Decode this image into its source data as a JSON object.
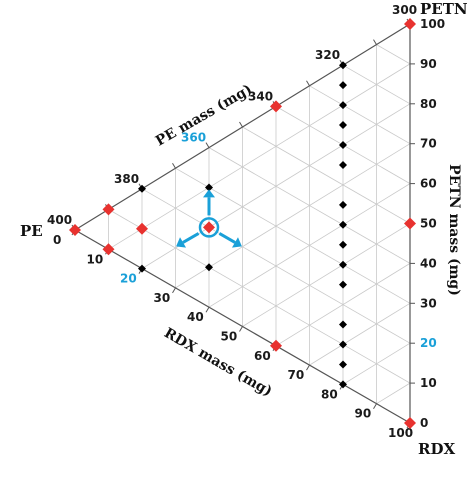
{
  "chart_data": {
    "type": "scatter",
    "subtype": "ternary",
    "corners": {
      "top": "PETN",
      "left": "PE",
      "right": "RDX"
    },
    "axes": {
      "pe": {
        "title": "PE mass (mg)",
        "ticks": [
          320,
          340,
          360,
          380,
          400
        ],
        "highlight_tick": 360,
        "range": [
          300,
          400
        ]
      },
      "petn": {
        "title": "PETN mass (mg)",
        "ticks": [
          0,
          10,
          20,
          30,
          40,
          50,
          60,
          70,
          80,
          90,
          100
        ],
        "highlight_tick": 20,
        "range": [
          0,
          100
        ]
      },
      "rdx": {
        "title": "RDX mass (mg)",
        "ticks": [
          0,
          10,
          20,
          30,
          40,
          50,
          60,
          70,
          80,
          90,
          100
        ],
        "highlight_tick": 20,
        "range": [
          0,
          100
        ]
      }
    },
    "grid": true,
    "series": [
      {
        "marker": "diamond",
        "color": "#e8322f",
        "points": [
          {
            "pe": 400,
            "petn": 0,
            "rdx": 0
          },
          {
            "pe": 390,
            "petn": 10,
            "rdx": 0
          },
          {
            "pe": 390,
            "petn": 0,
            "rdx": 10
          },
          {
            "pe": 380,
            "petn": 10,
            "rdx": 10
          },
          {
            "pe": 360,
            "petn": 20,
            "rdx": 20
          },
          {
            "pe": 340,
            "petn": 0,
            "rdx": 60
          },
          {
            "pe": 340,
            "petn": 60,
            "rdx": 0
          },
          {
            "pe": 300,
            "petn": 50,
            "rdx": 50
          },
          {
            "pe": 300,
            "petn": 100,
            "rdx": 0
          },
          {
            "pe": 300,
            "petn": 0,
            "rdx": 100
          }
        ]
      },
      {
        "marker": "diamond",
        "color": "#000000",
        "points": [
          {
            "pe": 400,
            "petn": 0,
            "rdx": 0
          },
          {
            "pe": 390,
            "petn": 10,
            "rdx": 0
          },
          {
            "pe": 390,
            "petn": 0,
            "rdx": 10
          },
          {
            "pe": 380,
            "petn": 20,
            "rdx": 0
          },
          {
            "pe": 380,
            "petn": 0,
            "rdx": 20
          },
          {
            "pe": 360,
            "petn": 30,
            "rdx": 10
          },
          {
            "pe": 360,
            "petn": 10,
            "rdx": 30
          },
          {
            "pe": 320,
            "petn": 80,
            "rdx": 0
          },
          {
            "pe": 320,
            "petn": 75,
            "rdx": 5
          },
          {
            "pe": 320,
            "petn": 70,
            "rdx": 10
          },
          {
            "pe": 320,
            "petn": 65,
            "rdx": 15
          },
          {
            "pe": 320,
            "petn": 60,
            "rdx": 20
          },
          {
            "pe": 320,
            "petn": 55,
            "rdx": 25
          },
          {
            "pe": 320,
            "petn": 45,
            "rdx": 35
          },
          {
            "pe": 320,
            "petn": 40,
            "rdx": 40
          },
          {
            "pe": 320,
            "petn": 35,
            "rdx": 45
          },
          {
            "pe": 320,
            "petn": 30,
            "rdx": 50
          },
          {
            "pe": 320,
            "petn": 25,
            "rdx": 55
          },
          {
            "pe": 320,
            "petn": 15,
            "rdx": 65
          },
          {
            "pe": 320,
            "petn": 10,
            "rdx": 70
          },
          {
            "pe": 320,
            "petn": 5,
            "rdx": 75
          },
          {
            "pe": 320,
            "petn": 0,
            "rdx": 80
          }
        ]
      }
    ],
    "annotation": {
      "point": {
        "pe": 360,
        "petn": 20,
        "rdx": 20
      },
      "symbol": "circled point with three outward arrows",
      "color": "#1aa0d8"
    }
  }
}
